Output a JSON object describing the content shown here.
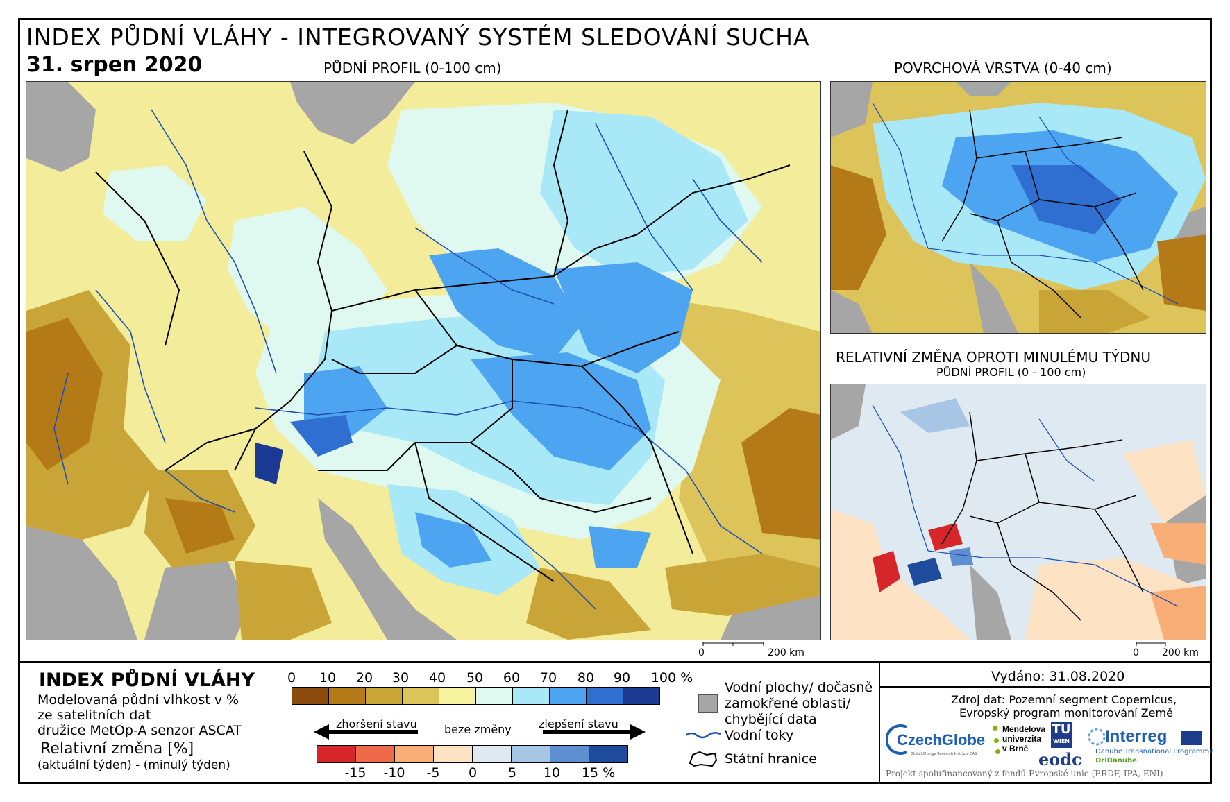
{
  "header": {
    "title": "INDEX PŮDNÍ VLÁHY - INTEGROVANÝ SYSTÉM SLEDOVÁNÍ SUCHA",
    "date": "31. srpen 2020"
  },
  "maps": {
    "main_label": "PŮDNÍ PROFIL (0-100 cm)",
    "surface_label": "POVRCHOVÁ VRSTVA (0-40 cm)",
    "change_label": "RELATIVNÍ ZMĚNA OPROTI MINULÉMU TÝDNU",
    "change_sublabel": "PŮDNÍ PROFIL (0 - 100 cm)",
    "scale_main": {
      "zero": "0",
      "end": "200 km"
    },
    "scale_small": {
      "zero": "0",
      "end": "200 km"
    }
  },
  "legend": {
    "title": "INDEX PŮDNÍ VLÁHY",
    "desc_lines": [
      "Modelovaná půdní vlhkost v %",
      "ze satelitních dat",
      "družice MetOp-A senzor ASCAT"
    ],
    "rel_title": "Relativní změna [%]",
    "rel_sub": "(aktuální týden) - (minulý týden)",
    "index_ticks": [
      "0",
      "10",
      "20",
      "30",
      "40",
      "50",
      "60",
      "70",
      "80",
      "90",
      "100 %"
    ],
    "index_colors": [
      "#8c4a0c",
      "#b47a17",
      "#c9a436",
      "#dcc45a",
      "#f6f39c",
      "#dff8f0",
      "#a9e8f7",
      "#4da4f0",
      "#2e6fd1",
      "#1a3a94"
    ],
    "change_colors": [
      "#d7262a",
      "#ef6a48",
      "#f9ad77",
      "#fde2c3",
      "#dfe9f2",
      "#a7c5e4",
      "#5e8fd1",
      "#1f4b9c"
    ],
    "change_ticks": [
      "-15",
      "-10",
      "-5",
      "0",
      "5",
      "10",
      "15 %"
    ],
    "arrow_worse": "zhoršení stavu",
    "arrow_none": "beze změny",
    "arrow_better": "zlepšení stavu",
    "water_label_lines": [
      "Vodní plochy/ dočasně",
      "zamokřené oblasti/",
      "chybějící data"
    ],
    "rivers_label": "Vodní toky",
    "borders_label": "Státní hranice"
  },
  "info": {
    "issued": "Vydáno: 31.08.2020",
    "source_lines": [
      "Zdroj dat: Pozemní segment Copernicus,",
      "Evropský program monitorování Země"
    ],
    "logos": {
      "czechglobe": "CzechGlobe",
      "czechglobe_sub": "Global Change Research Institute CAS",
      "mendelu_lines": [
        "Mendelova",
        "univerzita",
        "v Brně"
      ],
      "tu": "TU",
      "tu_sub": "WIEN",
      "eodc": "eodc",
      "interreg": "Interreg",
      "interreg_sub1": "Danube Transnational Programme",
      "interreg_sub2": "DriDanube"
    },
    "footer": "Projekt spolufinancovaný z fondů Evropské unie (ERDF, IPA, ENI)"
  }
}
